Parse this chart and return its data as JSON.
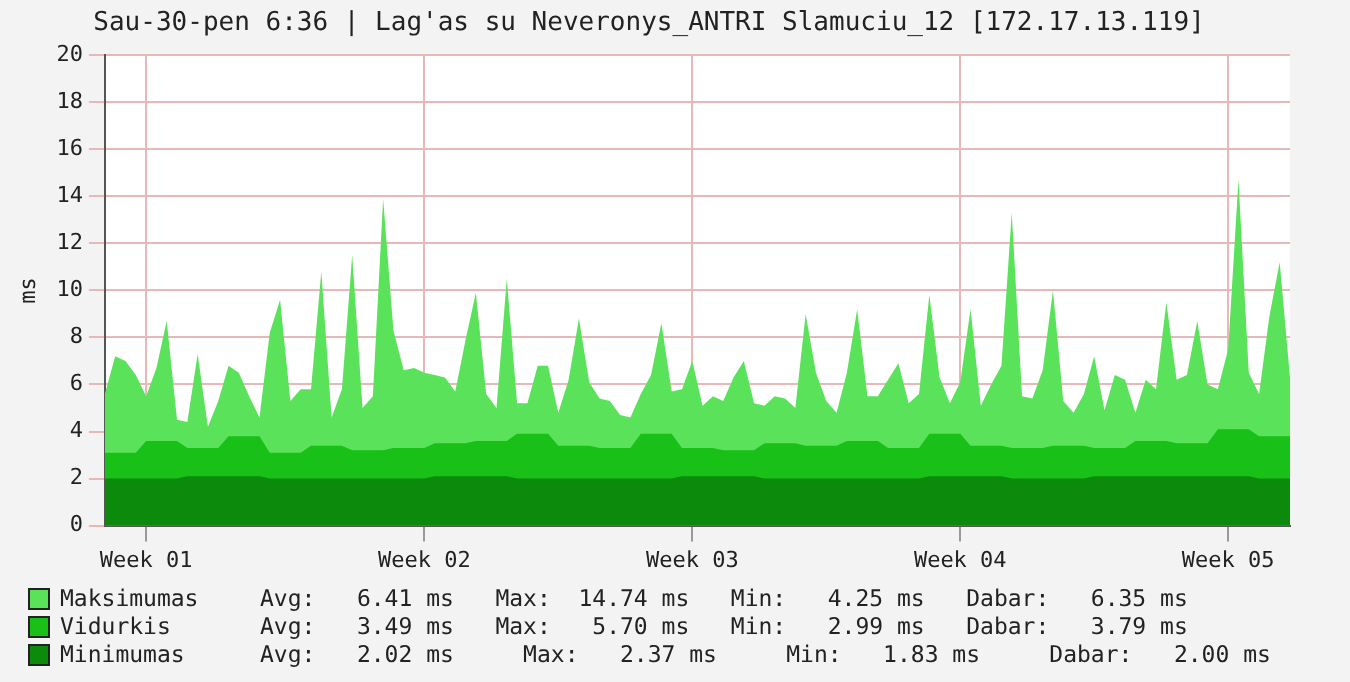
{
  "chart_data": {
    "type": "area",
    "title": "Sau-30-pen 6:36 | Lag'as su Neveronys_ANTRI Slamuciu_12 [172.17.13.119]",
    "ylabel": "ms",
    "categories": [
      null,
      null,
      null,
      null,
      "Week 01",
      null,
      null,
      null,
      null,
      null,
      null,
      null,
      null,
      null,
      null,
      null,
      null,
      null,
      null,
      null,
      null,
      null,
      null,
      null,
      null,
      null,
      null,
      null,
      null,
      null,
      null,
      "Week 02",
      null,
      null,
      null,
      null,
      null,
      null,
      null,
      null,
      null,
      null,
      null,
      null,
      null,
      null,
      null,
      null,
      null,
      null,
      null,
      null,
      null,
      null,
      null,
      null,
      null,
      "Week 03",
      null,
      null,
      null,
      null,
      null,
      null,
      null,
      null,
      null,
      null,
      null,
      null,
      null,
      null,
      null,
      null,
      null,
      null,
      null,
      null,
      null,
      null,
      null,
      null,
      null,
      "Week 04",
      null,
      null,
      null,
      null,
      null,
      null,
      null,
      null,
      null,
      null,
      null,
      null,
      null,
      null,
      null,
      null,
      null,
      null,
      null,
      null,
      null,
      null,
      null,
      null,
      null,
      "Week 05",
      null,
      null,
      null,
      null,
      null,
      null
    ],
    "ylim": [
      0,
      20
    ],
    "yticks": [
      0,
      2,
      4,
      6,
      8,
      10,
      12,
      14,
      16,
      18,
      20
    ],
    "grid": true,
    "legend": "bottom",
    "series": [
      {
        "name": "Maksimumas",
        "color": "#5ae35a",
        "values": [
          5.6,
          7.2,
          7.0,
          6.4,
          5.5,
          6.7,
          8.7,
          4.5,
          4.4,
          7.3,
          4.2,
          5.3,
          6.8,
          6.5,
          5.5,
          4.6,
          8.2,
          9.6,
          5.3,
          5.8,
          5.8,
          10.8,
          4.6,
          5.8,
          11.5,
          5.0,
          5.5,
          13.9,
          8.3,
          6.6,
          6.7,
          6.5,
          6.4,
          6.3,
          5.7,
          7.9,
          9.9,
          5.6,
          5.0,
          10.5,
          5.2,
          5.2,
          6.8,
          6.8,
          4.8,
          6.2,
          8.8,
          6.1,
          5.4,
          5.3,
          4.7,
          4.6,
          5.6,
          6.4,
          8.6,
          5.7,
          5.8,
          7.0,
          5.1,
          5.5,
          5.3,
          6.3,
          7.0,
          5.2,
          5.1,
          5.5,
          5.4,
          5.0,
          9.0,
          6.5,
          5.3,
          4.8,
          6.5,
          9.2,
          5.5,
          5.5,
          6.2,
          6.9,
          5.2,
          5.6,
          9.8,
          6.3,
          5.2,
          6.1,
          9.2,
          5.1,
          6.0,
          6.8,
          13.3,
          5.5,
          5.4,
          6.6,
          10.0,
          5.3,
          4.8,
          5.6,
          7.2,
          4.9,
          6.4,
          6.2,
          4.8,
          6.2,
          5.8,
          9.5,
          6.2,
          6.4,
          8.7,
          6.0,
          5.8,
          7.5,
          14.7,
          6.5,
          5.6,
          8.9,
          11.2,
          6.3
        ]
      },
      {
        "name": "Vidurkis",
        "color": "#18c018",
        "values": [
          3.1,
          3.1,
          3.1,
          3.1,
          3.6,
          3.6,
          3.6,
          3.6,
          3.3,
          3.3,
          3.3,
          3.3,
          3.8,
          3.8,
          3.8,
          3.8,
          3.1,
          3.1,
          3.1,
          3.1,
          3.4,
          3.4,
          3.4,
          3.4,
          3.2,
          3.2,
          3.2,
          3.2,
          3.3,
          3.3,
          3.3,
          3.3,
          3.5,
          3.5,
          3.5,
          3.5,
          3.6,
          3.6,
          3.6,
          3.6,
          3.9,
          3.9,
          3.9,
          3.9,
          3.4,
          3.4,
          3.4,
          3.4,
          3.3,
          3.3,
          3.3,
          3.3,
          3.9,
          3.9,
          3.9,
          3.9,
          3.3,
          3.3,
          3.3,
          3.3,
          3.2,
          3.2,
          3.2,
          3.2,
          3.5,
          3.5,
          3.5,
          3.5,
          3.4,
          3.4,
          3.4,
          3.4,
          3.6,
          3.6,
          3.6,
          3.6,
          3.3,
          3.3,
          3.3,
          3.3,
          3.9,
          3.9,
          3.9,
          3.9,
          3.4,
          3.4,
          3.4,
          3.4,
          3.3,
          3.3,
          3.3,
          3.3,
          3.4,
          3.4,
          3.4,
          3.4,
          3.3,
          3.3,
          3.3,
          3.3,
          3.6,
          3.6,
          3.6,
          3.6,
          3.5,
          3.5,
          3.5,
          3.5,
          4.1,
          4.1,
          4.1,
          4.1,
          3.8,
          3.8,
          3.8,
          3.8
        ]
      },
      {
        "name": "Minimumas",
        "color": "#0b8a0b",
        "values": [
          2.0,
          2.0,
          2.0,
          2.0,
          2.0,
          2.0,
          2.0,
          2.0,
          2.1,
          2.1,
          2.1,
          2.1,
          2.1,
          2.1,
          2.1,
          2.1,
          2.0,
          2.0,
          2.0,
          2.0,
          2.0,
          2.0,
          2.0,
          2.0,
          2.0,
          2.0,
          2.0,
          2.0,
          2.0,
          2.0,
          2.0,
          2.0,
          2.1,
          2.1,
          2.1,
          2.1,
          2.1,
          2.1,
          2.1,
          2.1,
          2.0,
          2.0,
          2.0,
          2.0,
          2.0,
          2.0,
          2.0,
          2.0,
          2.0,
          2.0,
          2.0,
          2.0,
          2.0,
          2.0,
          2.0,
          2.0,
          2.1,
          2.1,
          2.1,
          2.1,
          2.1,
          2.1,
          2.1,
          2.1,
          2.0,
          2.0,
          2.0,
          2.0,
          2.0,
          2.0,
          2.0,
          2.0,
          2.0,
          2.0,
          2.0,
          2.0,
          2.0,
          2.0,
          2.0,
          2.0,
          2.1,
          2.1,
          2.1,
          2.1,
          2.1,
          2.1,
          2.1,
          2.1,
          2.0,
          2.0,
          2.0,
          2.0,
          2.0,
          2.0,
          2.0,
          2.0,
          2.1,
          2.1,
          2.1,
          2.1,
          2.1,
          2.1,
          2.1,
          2.1,
          2.1,
          2.1,
          2.1,
          2.1,
          2.1,
          2.1,
          2.1,
          2.1,
          2.0,
          2.0,
          2.0,
          2.0
        ]
      }
    ],
    "annotations": [
      "Avg:   6.41 ms   Max:  14.74 ms   Min:   4.25 ms   Dabar:   6.35 ms",
      "Avg:   3.49 ms   Max:   5.70 ms   Min:   2.99 ms   Dabar:   3.79 ms",
      "Avg:   2.02 ms     Max:   2.37 ms     Min:   1.83 ms     Dabar:   2.00 ms"
    ]
  }
}
